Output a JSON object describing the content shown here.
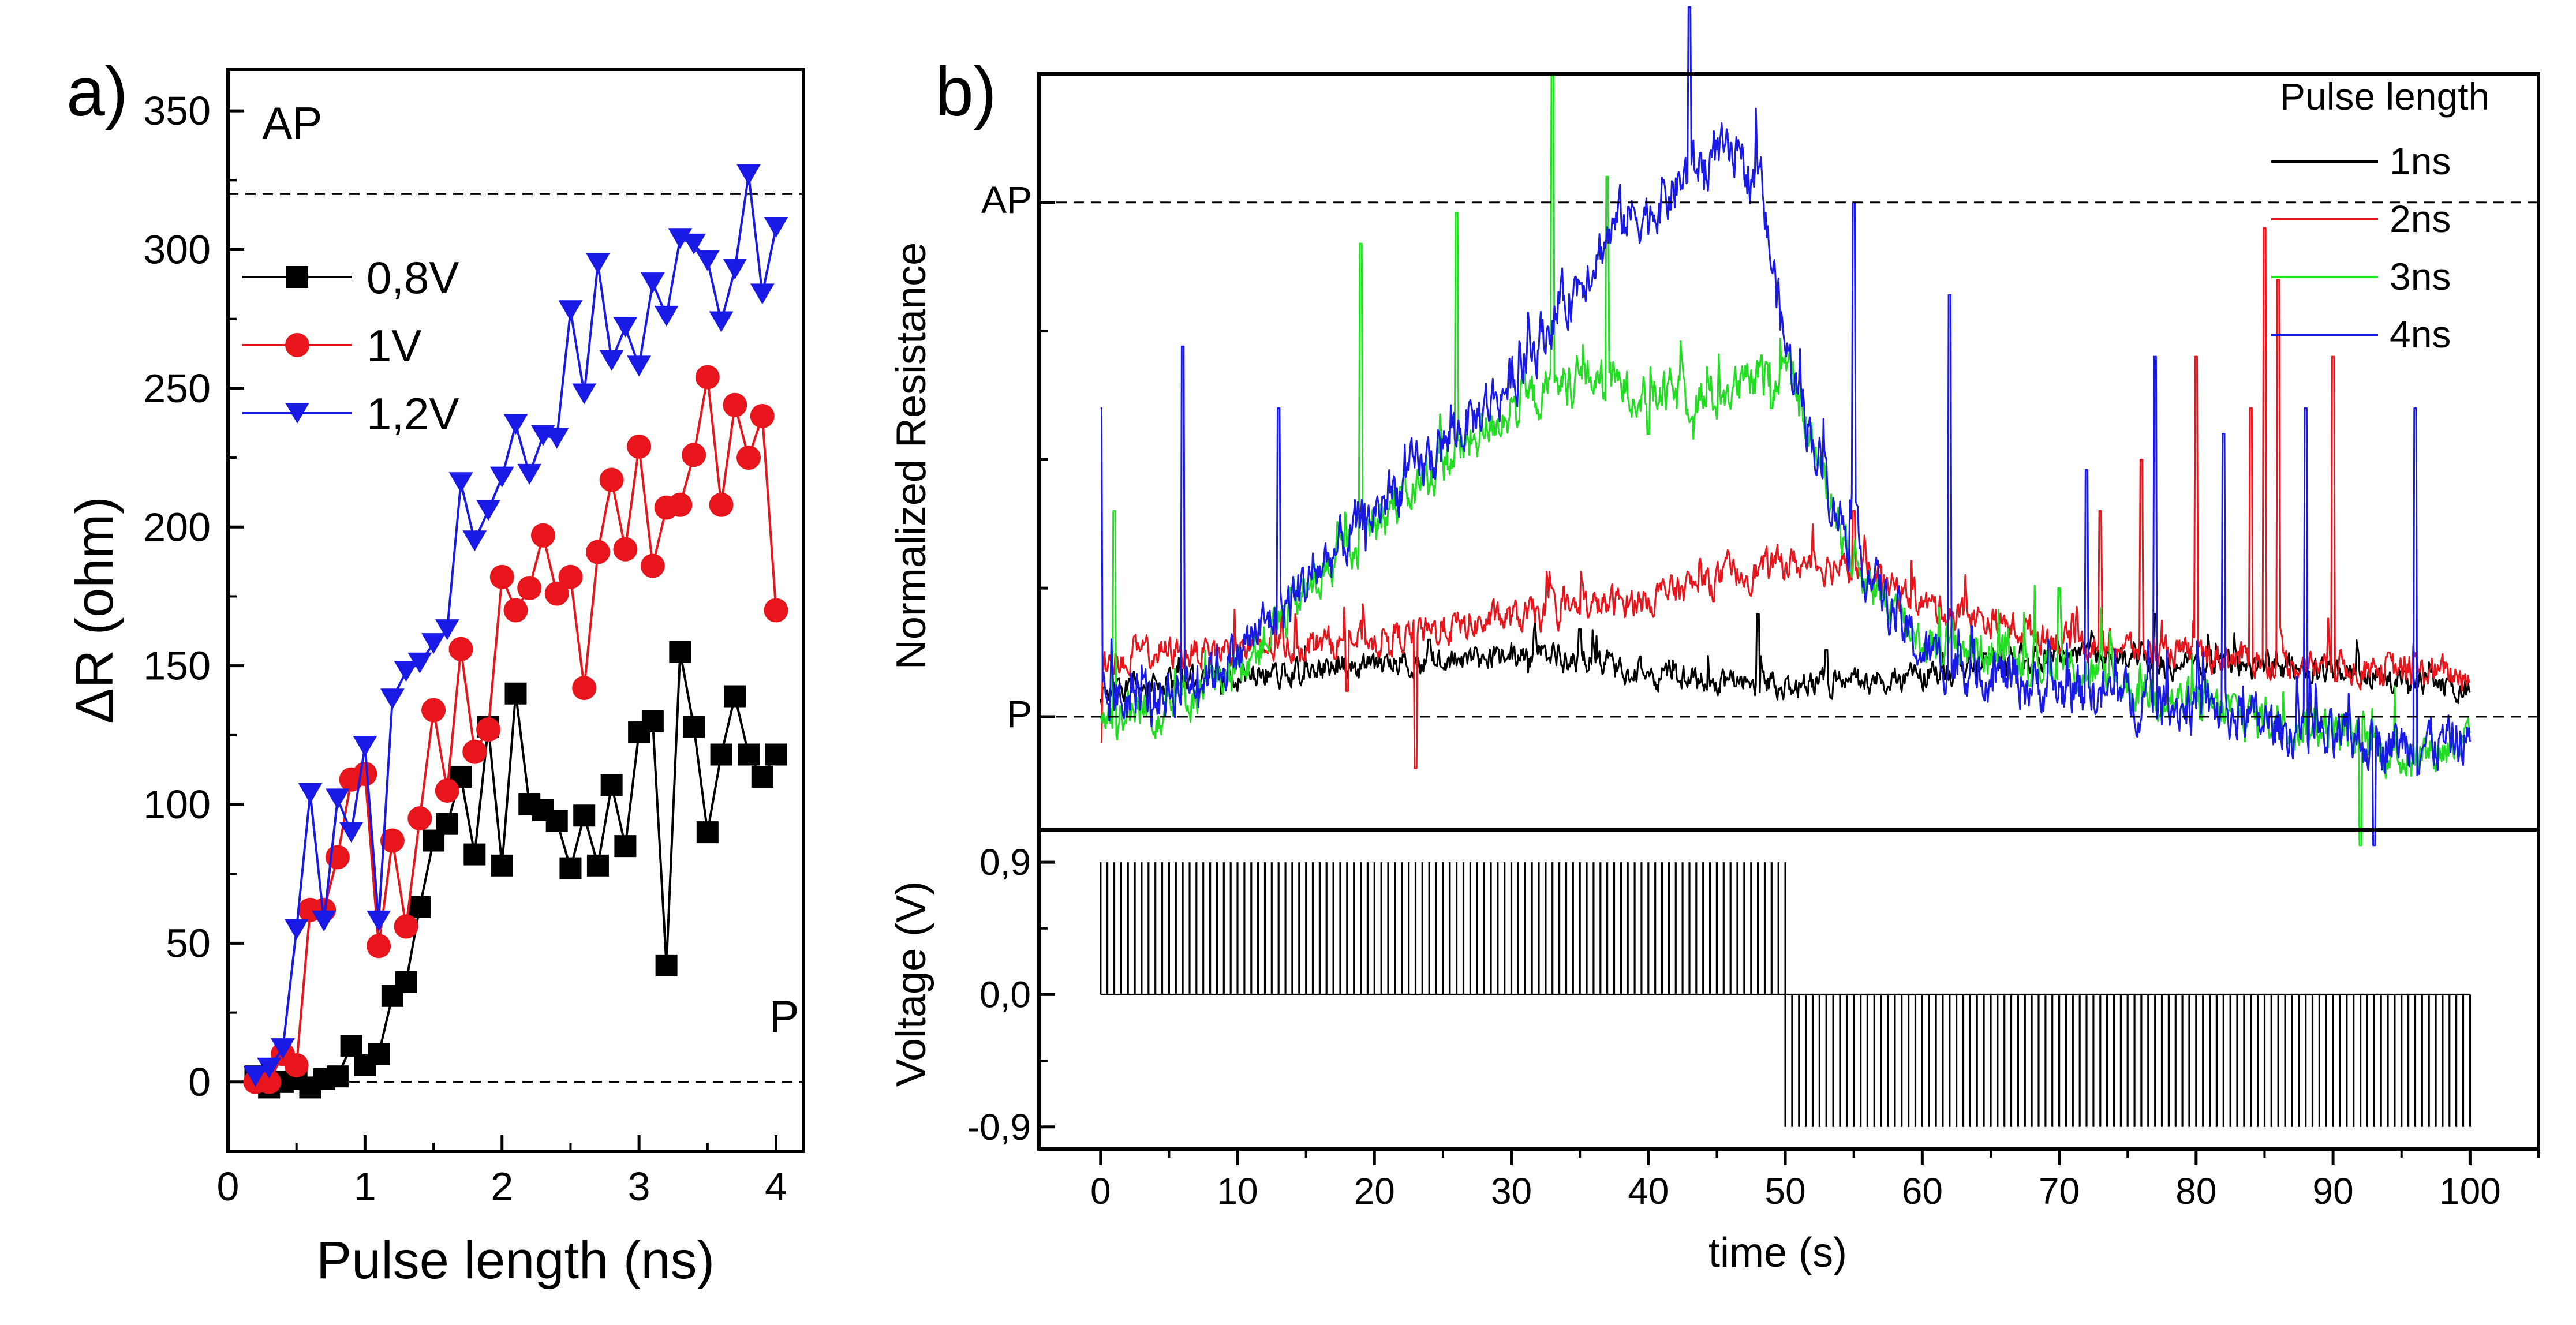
{
  "chart_data": [
    {
      "panel_label": "a)",
      "type": "line",
      "title": "",
      "xlabel": "Pulse length (ns)",
      "ylabel": "ΔR (ohm)",
      "xlim": [
        0,
        4.2
      ],
      "ylim": [
        -25,
        365
      ],
      "xticks": [
        "0",
        "1",
        "2",
        "3",
        "4"
      ],
      "xtick_values": [
        0,
        1,
        2,
        3,
        4
      ],
      "yticks": [
        "0",
        "50",
        "100",
        "150",
        "200",
        "250",
        "300",
        "350"
      ],
      "ytick_values": [
        0,
        50,
        100,
        150,
        200,
        250,
        300,
        350
      ],
      "grid": false,
      "legend": "top-left",
      "annotations": [
        {
          "text": "AP",
          "x": 0.25,
          "y": 340
        },
        {
          "text": "P",
          "x": 3.95,
          "y": 18
        }
      ],
      "reference_lines": [
        {
          "label": "AP",
          "y": 320,
          "style": "dashed"
        },
        {
          "label": "P",
          "y": 0,
          "style": "dashed"
        }
      ],
      "series": [
        {
          "name": "0,8V",
          "color": "#000000",
          "marker": "square",
          "x": [
            0.2,
            0.3,
            0.4,
            0.5,
            0.6,
            0.7,
            0.8,
            0.9,
            1.0,
            1.1,
            1.2,
            1.3,
            1.4,
            1.5,
            1.6,
            1.7,
            1.8,
            1.9,
            2.0,
            2.1,
            2.2,
            2.3,
            2.4,
            2.5,
            2.6,
            2.7,
            2.8,
            2.9,
            3.0,
            3.1,
            3.2,
            3.3,
            3.4,
            3.5,
            3.6,
            3.7,
            3.8,
            3.9,
            4.0
          ],
          "y": [
            2,
            -2,
            0,
            1,
            -2,
            1,
            2,
            13,
            6,
            10,
            31,
            36,
            63,
            87,
            93,
            110,
            82,
            128,
            78,
            140,
            100,
            98,
            94,
            77,
            96,
            78,
            107,
            85,
            126,
            130,
            42,
            155,
            128,
            90,
            118,
            139,
            118,
            110,
            118
          ]
        },
        {
          "name": "1V",
          "color": "#e8161c",
          "marker": "circle",
          "x": [
            0.2,
            0.3,
            0.4,
            0.5,
            0.6,
            0.7,
            0.8,
            0.9,
            1.0,
            1.1,
            1.2,
            1.3,
            1.4,
            1.5,
            1.6,
            1.7,
            1.8,
            1.9,
            2.0,
            2.1,
            2.2,
            2.3,
            2.4,
            2.5,
            2.6,
            2.7,
            2.8,
            2.9,
            3.0,
            3.1,
            3.2,
            3.3,
            3.4,
            3.5,
            3.6,
            3.7,
            3.8,
            3.9,
            4.0
          ],
          "y": [
            0,
            0,
            10,
            6,
            62,
            62,
            81,
            109,
            111,
            49,
            87,
            56,
            95,
            134,
            105,
            156,
            119,
            127,
            182,
            170,
            178,
            197,
            176,
            182,
            142,
            191,
            217,
            192,
            229,
            186,
            207,
            208,
            226,
            254,
            208,
            244,
            225,
            240,
            170
          ]
        },
        {
          "name": "1,2V",
          "color": "#1a1ae6",
          "marker": "triangle-down",
          "x": [
            0.2,
            0.3,
            0.4,
            0.5,
            0.6,
            0.7,
            0.8,
            0.9,
            1.0,
            1.1,
            1.2,
            1.3,
            1.4,
            1.5,
            1.6,
            1.7,
            1.8,
            1.9,
            2.0,
            2.1,
            2.2,
            2.3,
            2.4,
            2.5,
            2.6,
            2.7,
            2.8,
            2.9,
            3.0,
            3.1,
            3.2,
            3.3,
            3.4,
            3.5,
            3.6,
            3.7,
            3.8,
            3.9,
            4.0
          ],
          "y": [
            2,
            5,
            12,
            55,
            104,
            58,
            102,
            90,
            121,
            58,
            138,
            148,
            151,
            158,
            163,
            216,
            195,
            206,
            218,
            237,
            219,
            233,
            232,
            278,
            248,
            295,
            260,
            272,
            258,
            288,
            276,
            304,
            302,
            296,
            274,
            293,
            327,
            284,
            308
          ]
        }
      ]
    },
    {
      "panel_label": "b)",
      "type": "line",
      "title": "",
      "xlabel": "",
      "ylabel": "Normalized Resistance",
      "xlim": [
        -4.5,
        105
      ],
      "ylim": [
        -0.22,
        1.25
      ],
      "y_tick_labels": [
        "AP",
        "P"
      ],
      "y_tick_values": [
        1.0,
        0.0
      ],
      "legend": "top-right",
      "legend_title": "Pulse length",
      "reference_lines": [
        {
          "label": "AP",
          "y": 1.0,
          "style": "dashed"
        },
        {
          "label": "P",
          "y": 0.0,
          "style": "dashed"
        }
      ],
      "noise_seed": 1234,
      "series": [
        {
          "name": "1ns",
          "color": "#000000",
          "noise": 0.045,
          "profile_x": [
            0,
            5,
            10,
            20,
            30,
            35,
            40,
            50,
            60,
            70,
            80,
            90,
            100
          ],
          "profile_y": [
            0.05,
            0.07,
            0.08,
            0.1,
            0.12,
            0.11,
            0.08,
            0.06,
            0.08,
            0.12,
            0.1,
            0.09,
            0.05
          ],
          "spikes": [
            [
              24,
              0.15
            ],
            [
              35,
              0.17
            ],
            [
              48,
              0.2
            ],
            [
              53,
              0.13
            ],
            [
              77,
              0.2
            ]
          ]
        },
        {
          "name": "2ns",
          "color": "#e8161c",
          "noise": 0.055,
          "profile_x": [
            0,
            10,
            20,
            30,
            40,
            50,
            55,
            60,
            70,
            80,
            90,
            100
          ],
          "profile_y": [
            0.12,
            0.13,
            0.15,
            0.19,
            0.23,
            0.3,
            0.29,
            0.22,
            0.15,
            0.12,
            0.1,
            0.08
          ],
          "spikes": [
            [
              0,
              -0.05
            ],
            [
              18,
              0.05
            ],
            [
              23,
              -0.1
            ],
            [
              55,
              0.4
            ],
            [
              73,
              0.4
            ],
            [
              76,
              0.5
            ],
            [
              80,
              0.7
            ],
            [
              84,
              0.6
            ],
            [
              85,
              0.95
            ],
            [
              86,
              0.85
            ],
            [
              90,
              0.7
            ]
          ]
        },
        {
          "name": "3ns",
          "color": "#22dd22",
          "noise": 0.08,
          "profile_x": [
            0,
            5,
            10,
            20,
            30,
            35,
            40,
            45,
            50,
            55,
            60,
            70,
            80,
            90,
            95,
            100
          ],
          "profile_y": [
            0.0,
            0.02,
            0.1,
            0.38,
            0.6,
            0.66,
            0.63,
            0.62,
            0.68,
            0.3,
            0.15,
            0.1,
            0.02,
            -0.02,
            -0.08,
            -0.05
          ],
          "spikes": [
            [
              1,
              0.4
            ],
            [
              19,
              0.92
            ],
            [
              26,
              0.98
            ],
            [
              33,
              1.25
            ],
            [
              37,
              1.05
            ],
            [
              40,
              0.55
            ],
            [
              49,
              0.6
            ],
            [
              70,
              0.25
            ],
            [
              92,
              -0.25
            ]
          ]
        },
        {
          "name": "4ns",
          "color": "#1a1ae6",
          "noise": 0.09,
          "profile_x": [
            0,
            5,
            10,
            20,
            30,
            35,
            38,
            40,
            45,
            48,
            50,
            53,
            56,
            60,
            70,
            80,
            90,
            100
          ],
          "profile_y": [
            0.02,
            0.05,
            0.12,
            0.4,
            0.65,
            0.85,
            0.97,
            0.98,
            1.1,
            1.05,
            0.72,
            0.45,
            0.28,
            0.12,
            0.05,
            0.02,
            -0.05,
            -0.05
          ],
          "spikes": [
            [
              0,
              0.6
            ],
            [
              6,
              0.72
            ],
            [
              13,
              0.6
            ],
            [
              43,
              1.38
            ],
            [
              55,
              1.0
            ],
            [
              62,
              0.82
            ],
            [
              72,
              0.48
            ],
            [
              77,
              0.7
            ],
            [
              82,
              0.55
            ],
            [
              88,
              0.6
            ],
            [
              93,
              -0.25
            ],
            [
              96,
              0.6
            ]
          ]
        }
      ]
    },
    {
      "panel_label": "",
      "type": "line",
      "title": "",
      "xlabel": "time (s)",
      "ylabel": "Voltage (V)",
      "xlim": [
        -4.5,
        105
      ],
      "ylim": [
        -1.05,
        1.12
      ],
      "xticks": [
        "0",
        "10",
        "20",
        "30",
        "40",
        "50",
        "60",
        "70",
        "80",
        "90",
        "100"
      ],
      "xtick_values": [
        0,
        10,
        20,
        30,
        40,
        50,
        60,
        70,
        80,
        90,
        100
      ],
      "yticks": [
        "0,9",
        "0,0",
        "-0,9"
      ],
      "ytick_values": [
        0.9,
        0.0,
        -0.9
      ],
      "series": [
        {
          "name": "",
          "color": "#000000",
          "style": "pulse-train",
          "segments": [
            {
              "t_start": 0,
              "t_end": 50,
              "pulse_period": 0.5,
              "amplitude": 0.9
            },
            {
              "t_start": 50,
              "t_end": 100,
              "pulse_period": 0.5,
              "amplitude": -0.9
            }
          ]
        }
      ]
    }
  ]
}
